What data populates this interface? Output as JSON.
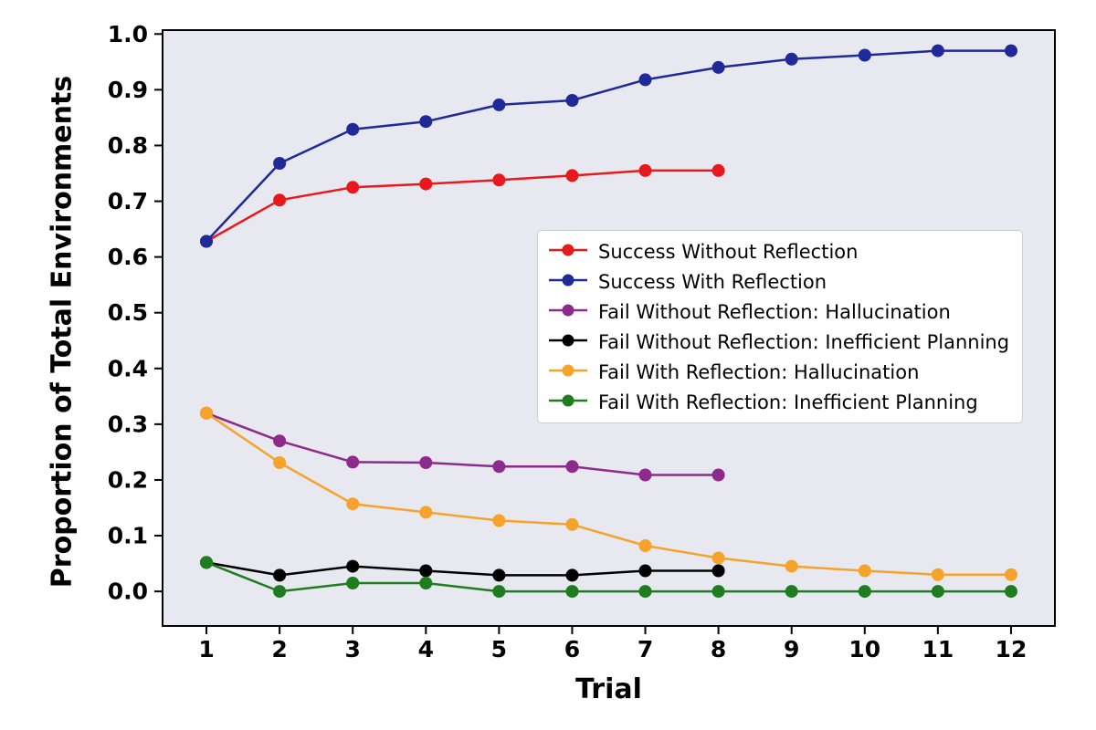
{
  "chart_data": {
    "type": "line",
    "title": "",
    "xlabel": "Trial",
    "ylabel": "Proportion of Total Environments",
    "x_ticks": [
      1,
      2,
      3,
      4,
      5,
      6,
      7,
      8,
      9,
      10,
      11,
      12
    ],
    "y_ticks": [
      0.0,
      0.1,
      0.2,
      0.3,
      0.4,
      0.5,
      0.6,
      0.7,
      0.8,
      0.9,
      1.0
    ],
    "xlim": [
      0.4,
      12.6
    ],
    "ylim": [
      -0.062,
      1.007
    ],
    "grid": false,
    "legend_position": "center-right",
    "plot_bg": "#e8e8f1",
    "axis_color": "#000000",
    "marker_radius": 7,
    "line_width": 2.5,
    "series": [
      {
        "name": "Success Without Reflection",
        "color": "#e8191c",
        "x": [
          1,
          2,
          3,
          4,
          5,
          6,
          7,
          8
        ],
        "values": [
          0.628,
          0.702,
          0.725,
          0.731,
          0.738,
          0.746,
          0.755,
          0.755
        ]
      },
      {
        "name": "Success With Reflection",
        "color": "#1f2a99",
        "x": [
          1,
          2,
          3,
          4,
          5,
          6,
          7,
          8,
          9,
          10,
          11,
          12
        ],
        "values": [
          0.628,
          0.768,
          0.829,
          0.843,
          0.873,
          0.881,
          0.918,
          0.94,
          0.955,
          0.962,
          0.97,
          0.97
        ]
      },
      {
        "name": "Fail Without Reflection: Hallucination",
        "color": "#8e2a8c",
        "x": [
          1,
          2,
          3,
          4,
          5,
          6,
          7,
          8
        ],
        "values": [
          0.32,
          0.27,
          0.232,
          0.231,
          0.224,
          0.224,
          0.209,
          0.209
        ]
      },
      {
        "name": "Fail Without Reflection: Inefficient Planning",
        "color": "#000000",
        "x": [
          1,
          2,
          3,
          4,
          5,
          6,
          7,
          8
        ],
        "values": [
          0.052,
          0.029,
          0.045,
          0.037,
          0.029,
          0.029,
          0.037,
          0.037
        ]
      },
      {
        "name": "Fail With Reflection: Hallucination",
        "color": "#f5a águas"
      }
    ]
  }
}
